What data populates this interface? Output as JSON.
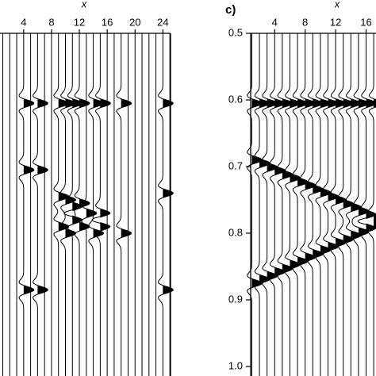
{
  "chart_data": [
    {
      "type": "wiggle",
      "xlabel": "x",
      "x": [
        1,
        2,
        3,
        4,
        5,
        6,
        7,
        8,
        9,
        10,
        11,
        12,
        13,
        14,
        15,
        16,
        17,
        18,
        19,
        20,
        21,
        22,
        23,
        24,
        25
      ],
      "xlim": [
        0.6,
        25.1
      ],
      "xticks": [
        4,
        8,
        12,
        16,
        20,
        24
      ],
      "ylim": [
        0.5,
        1.0
      ],
      "series": [
        {
          "color": "#000",
          "values": [
            null,
            null,
            null,
            0.605,
            null,
            0.605,
            null,
            null,
            0.605,
            0.605,
            0.605,
            0.605,
            null,
            0.605,
            0.605,
            null,
            null,
            0.605,
            null,
            null,
            null,
            null,
            null,
            0.605,
            null
          ]
        },
        {
          "color": "#000",
          "values": [
            null,
            null,
            null,
            0.705,
            null,
            0.705,
            null,
            null,
            null,
            null,
            null,
            null,
            null,
            null,
            null,
            null,
            null,
            null,
            null,
            null,
            null,
            null,
            null,
            0.74,
            null
          ]
        },
        {
          "color": "#000",
          "values": [
            null,
            null,
            null,
            null,
            null,
            null,
            null,
            null,
            0.745,
            0.75,
            0.76,
            0.755,
            0.77,
            null,
            0.77,
            null,
            null,
            0.8,
            null,
            null,
            null,
            null,
            null,
            null,
            null
          ]
        },
        {
          "color": "#000",
          "values": [
            null,
            null,
            null,
            0.885,
            null,
            0.885,
            null,
            null,
            0.79,
            0.8,
            0.78,
            0.79,
            null,
            0.8,
            0.79,
            null,
            null,
            null,
            null,
            null,
            null,
            null,
            null,
            0.885,
            null
          ]
        }
      ]
    },
    {
      "type": "wiggle",
      "title": "c)",
      "xlabel": "x",
      "x": [
        1,
        2,
        3,
        4,
        5,
        6,
        7,
        8,
        9,
        10,
        11,
        12,
        13,
        14,
        15,
        16,
        17
      ],
      "xlim": [
        0.85,
        17.3
      ],
      "xticks": [
        4,
        8,
        12,
        16
      ],
      "ylim": [
        0.5,
        1.0
      ],
      "yticks": [
        0.5,
        0.6,
        0.7,
        0.8,
        0.9,
        {
          "value": 1.0,
          "label": "1.0"
        }
      ],
      "series": [
        {
          "color": "#000",
          "values": [
            0.605,
            0.605,
            0.605,
            0.605,
            0.605,
            0.605,
            0.605,
            0.605,
            0.605,
            0.605,
            0.605,
            0.605,
            0.605,
            0.605,
            0.605,
            0.605,
            0.605
          ]
        },
        {
          "color": "#000",
          "values": [
            0.69,
            0.695,
            0.701,
            0.706,
            0.712,
            0.717,
            0.723,
            0.728,
            0.734,
            0.739,
            0.745,
            0.75,
            0.756,
            0.761,
            0.767,
            0.772,
            0.778
          ]
        },
        {
          "color": "#000",
          "values": [
            0.875,
            0.869,
            0.864,
            0.858,
            0.853,
            0.847,
            0.842,
            0.836,
            0.831,
            0.825,
            0.82,
            0.814,
            0.809,
            0.803,
            0.798,
            0.792,
            0.787
          ]
        }
      ]
    }
  ]
}
